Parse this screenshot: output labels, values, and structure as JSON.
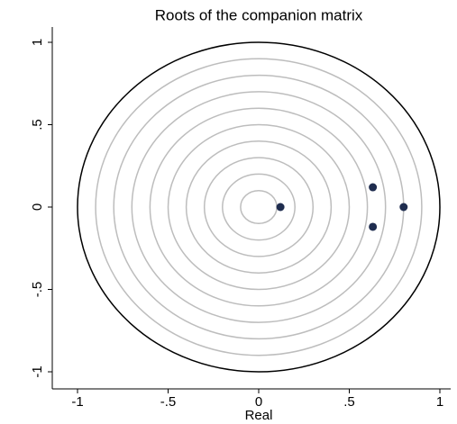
{
  "chart_data": {
    "type": "scatter",
    "title": "Roots of the companion matrix",
    "x_label": "Real",
    "x": [
      0.12,
      0.63,
      0.63,
      0.8
    ],
    "y": [
      0,
      0.12,
      -0.12,
      0
    ],
    "color": "#1f2d4f",
    "xlim": [
      -1,
      1
    ],
    "ylim": [
      -1,
      1
    ],
    "xticks": [
      {
        "value": -1,
        "label": "-1"
      },
      {
        "value": -0.5,
        "label": "-.5"
      },
      0,
      {
        "value": 0.5,
        "label": ".5"
      },
      1
    ],
    "yticks": [
      {
        "value": -1,
        "label": "-1"
      },
      {
        "value": -0.5,
        "label": "-.5"
      },
      0,
      {
        "value": 0.5,
        "label": ".5"
      },
      1
    ],
    "grid_circles": [
      0.1,
      0.2,
      0.3,
      0.4,
      0.5,
      0.6,
      0.7,
      0.8,
      0.9
    ],
    "unit_circle": 1
  }
}
